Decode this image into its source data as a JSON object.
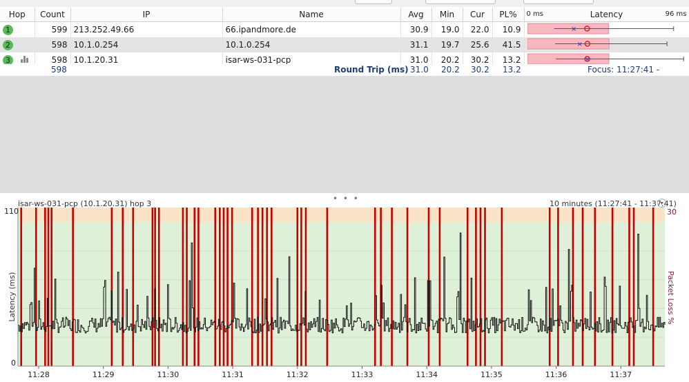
{
  "table": {
    "headers": {
      "hop": "Hop",
      "count": "Count",
      "ip": "IP",
      "name": "Name",
      "avg": "Avg",
      "min": "Min",
      "cur": "Cur",
      "pl": "PL%",
      "latency": "Latency",
      "lat_min": "0 ms",
      "lat_max": "96 ms"
    },
    "latency_scale_ms": 96,
    "rows": [
      {
        "hop": "1",
        "count": "599",
        "ip": "213.252.49.66",
        "name": "66.ipandmore.de",
        "avg": "30.9",
        "min": "19.0",
        "cur": "22.0",
        "pl": "10.9",
        "lat": {
          "min": 19.0,
          "avg": 30.9,
          "cur": 22.0,
          "max": 88
        }
      },
      {
        "hop": "2",
        "count": "598",
        "ip": "10.1.0.254",
        "name": "10.1.0.254",
        "avg": "31.1",
        "min": "19.7",
        "cur": "25.6",
        "pl": "41.5",
        "lat": {
          "min": 19.7,
          "avg": 31.1,
          "cur": 25.6,
          "max": 84
        }
      },
      {
        "hop": "3",
        "count": "598",
        "ip": "10.1.20.31",
        "name": "isar-ws-031-pcp",
        "avg": "31.0",
        "min": "20.2",
        "cur": "30.2",
        "pl": "13.2",
        "lat": {
          "min": 20.2,
          "avg": 31.0,
          "cur": 30.2,
          "max": 94
        }
      }
    ],
    "summary": {
      "count": "598",
      "label": "Round Trip (ms)",
      "avg": "31.0",
      "min": "20.2",
      "cur": "30.2",
      "pl": "13.2",
      "focus": "Focus: 11:27:41 - 11:37:41"
    }
  },
  "graph": {
    "title": "isar-ws-031-pcp (10.1.20.31) hop 3",
    "range": "10 minutes (11:27:41 - 11:37:41)",
    "handle": "• • •",
    "chart_data": {
      "type": "line",
      "ylabel": "Latency (ms)",
      "y2label": "Packet Loss %",
      "ylim": [
        0,
        110
      ],
      "ytick_left": [
        "110",
        "0"
      ],
      "y2tick": "30",
      "xticks": [
        "11:28",
        "11:29",
        "11:30",
        "11:31",
        "11:32",
        "11:33",
        "11:34",
        "11:35",
        "11:36",
        "11:37"
      ],
      "x_range_minutes": [
        0,
        10
      ],
      "xtick_minutes": [
        0.32,
        1.32,
        2.32,
        3.32,
        4.32,
        5.32,
        6.32,
        7.32,
        8.32,
        9.32
      ],
      "series": [
        {
          "values_summary": {
            "min": 20.2,
            "avg": 31.0,
            "max": 94
          }
        }
      ],
      "loss_marker_minutes": [
        0.05,
        0.28,
        0.42,
        0.47,
        0.52,
        0.85,
        1.45,
        1.62,
        1.78,
        2.08,
        2.12,
        2.18,
        2.55,
        2.61,
        2.73,
        2.79,
        3.05,
        3.12,
        3.18,
        3.24,
        3.31,
        3.62,
        3.71,
        3.78,
        3.85,
        3.92,
        4.32,
        4.38,
        4.45,
        4.78,
        5.52,
        5.61,
        5.78,
        6.02,
        6.35,
        6.52,
        6.95,
        7.08,
        7.15,
        7.22,
        7.48,
        8.22,
        8.35,
        8.58,
        8.73,
        8.92,
        9.19,
        9.45,
        9.52,
        9.82
      ]
    }
  }
}
